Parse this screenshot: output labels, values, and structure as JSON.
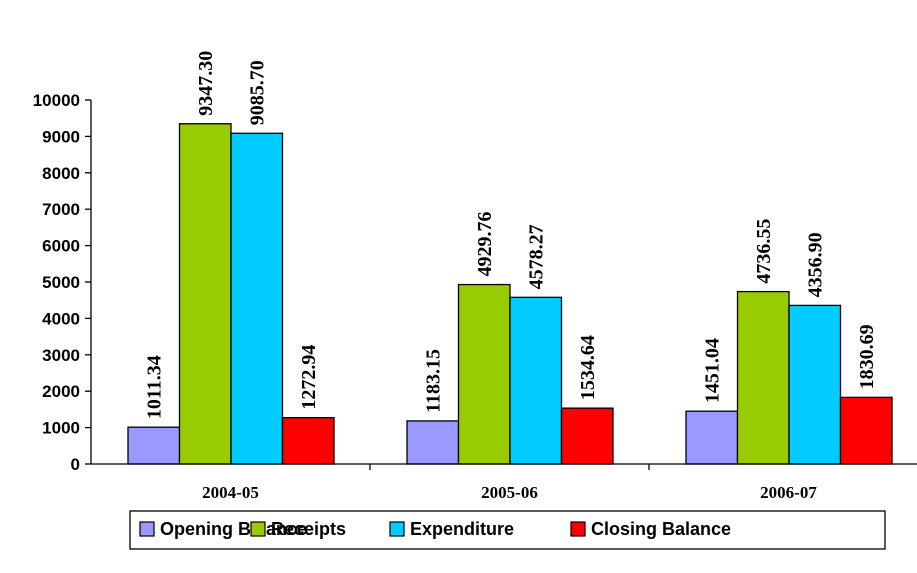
{
  "chart_data": {
    "type": "bar",
    "categories": [
      "2004-05",
      "2005-06",
      "2006-07"
    ],
    "series": [
      {
        "name": "Opening Balance",
        "color": "#9999ff",
        "values": [
          1011.34,
          1183.15,
          1451.04
        ],
        "labels": [
          "1011.34",
          "1183.15",
          "1451.04"
        ]
      },
      {
        "name": "Receipts",
        "color": "#99cc00",
        "values": [
          9347.3,
          4929.76,
          4736.55
        ],
        "labels": [
          "9347.30",
          "4929.76",
          "4736.55"
        ]
      },
      {
        "name": "Expenditure",
        "color": "#00ccff",
        "values": [
          9085.7,
          4578.27,
          4356.9
        ],
        "labels": [
          "9085.70",
          "4578.27",
          "4356.90"
        ]
      },
      {
        "name": "Closing Balance",
        "color": "#ff0000",
        "values": [
          1272.94,
          1534.64,
          1830.69
        ],
        "labels": [
          "1272.94",
          "1534.64",
          "1830.69"
        ]
      }
    ],
    "yticks": [
      "0",
      "1000",
      "2000",
      "3000",
      "4000",
      "5000",
      "6000",
      "7000",
      "8000",
      "9000",
      "10000"
    ],
    "ylim": [
      0,
      10000
    ],
    "grid": false,
    "legend_position": "bottom"
  }
}
